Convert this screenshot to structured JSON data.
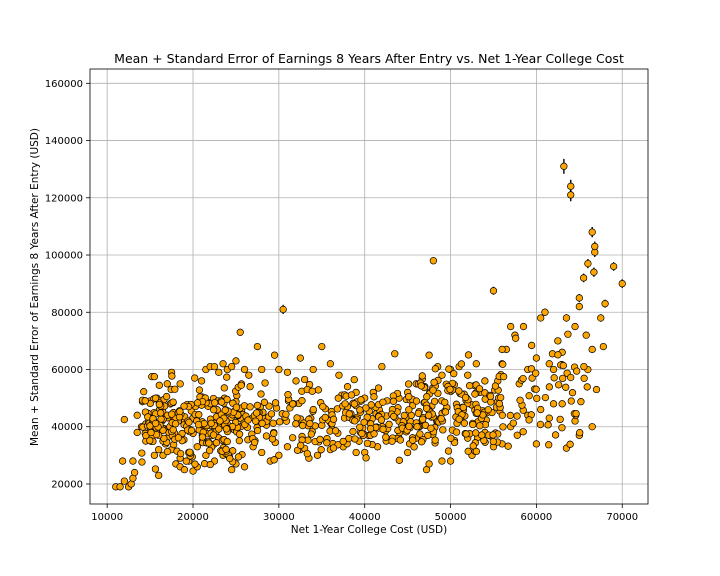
{
  "chart_data": {
    "type": "scatter",
    "title": "Mean + Standard Error of Earnings 8 Years After Entry vs. Net 1-Year College Cost",
    "xlabel": "Net 1-Year College Cost (USD)",
    "ylabel": "Mean + Standard Error of Earnings 8 Years After Entry (USD)",
    "xlim": [
      8000,
      73000
    ],
    "ylim": [
      13000,
      165000
    ],
    "xticks": [
      10000,
      20000,
      30000,
      40000,
      50000,
      60000,
      70000
    ],
    "yticks": [
      20000,
      40000,
      60000,
      80000,
      100000,
      120000,
      140000,
      160000
    ],
    "grid": true,
    "marker_color": "#ffa500",
    "marker_edge_color": "#000000",
    "points": [
      [
        11000,
        19000,
        300
      ],
      [
        11500,
        19000,
        300
      ],
      [
        12000,
        21000,
        400
      ],
      [
        12500,
        19000,
        300
      ],
      [
        12800,
        20000,
        400
      ],
      [
        13000,
        22000,
        400
      ],
      [
        11800,
        28000,
        500
      ],
      [
        12000,
        42500,
        600
      ],
      [
        13000,
        28000,
        500
      ],
      [
        13200,
        24000,
        400
      ],
      [
        13500,
        44000,
        600
      ],
      [
        14000,
        40000,
        600
      ],
      [
        14500,
        41000,
        700
      ],
      [
        15000,
        43000,
        700
      ],
      [
        15000,
        49000,
        700
      ],
      [
        15200,
        57500,
        800
      ],
      [
        15500,
        57500,
        800
      ],
      [
        15800,
        50000,
        700
      ],
      [
        16000,
        23000,
        500
      ],
      [
        16000,
        32000,
        600
      ],
      [
        16500,
        30000,
        600
      ],
      [
        16800,
        34000,
        600
      ],
      [
        17000,
        36000,
        600
      ],
      [
        17200,
        38000,
        600
      ],
      [
        17000,
        55000,
        800
      ],
      [
        17500,
        59000,
        800
      ],
      [
        18000,
        27000,
        500
      ],
      [
        18500,
        26000,
        500
      ],
      [
        19000,
        25000,
        500
      ],
      [
        19500,
        28000,
        500
      ],
      [
        20000,
        24500,
        500
      ],
      [
        20500,
        26000,
        500
      ],
      [
        20200,
        57000,
        800
      ],
      [
        21000,
        56000,
        800
      ],
      [
        21500,
        60000,
        800
      ],
      [
        22000,
        61000,
        900
      ],
      [
        22500,
        61000,
        900
      ],
      [
        23000,
        59000,
        900
      ],
      [
        23500,
        62000,
        900
      ],
      [
        24000,
        60000,
        900
      ],
      [
        24500,
        61000,
        900
      ],
      [
        25000,
        63000,
        900
      ],
      [
        25500,
        73000,
        1000
      ],
      [
        26000,
        60000,
        900
      ],
      [
        26500,
        58000,
        900
      ],
      [
        27500,
        68000,
        1000
      ],
      [
        28000,
        60000,
        900
      ],
      [
        29500,
        65000,
        1000
      ],
      [
        30000,
        60000,
        900
      ],
      [
        30500,
        81000,
        1600
      ],
      [
        31000,
        59000,
        900
      ],
      [
        32000,
        56000,
        900
      ],
      [
        32500,
        64000,
        1000
      ],
      [
        33000,
        56500,
        900
      ],
      [
        34000,
        60000,
        900
      ],
      [
        35000,
        68000,
        1000
      ],
      [
        36000,
        62000,
        1000
      ],
      [
        37000,
        58000,
        900
      ],
      [
        38000,
        54000,
        900
      ],
      [
        39000,
        52000,
        900
      ],
      [
        40000,
        50000,
        900
      ],
      [
        41000,
        52000,
        900
      ],
      [
        42000,
        61000,
        1000
      ],
      [
        43500,
        65500,
        1000
      ],
      [
        44000,
        50000,
        900
      ],
      [
        45000,
        52000,
        900
      ],
      [
        46000,
        55000,
        900
      ],
      [
        47000,
        54000,
        900
      ],
      [
        47500,
        65000,
        1000
      ],
      [
        48000,
        98000,
        1200
      ],
      [
        48500,
        61000,
        1000
      ],
      [
        49000,
        58000,
        900
      ],
      [
        50000,
        60000,
        900
      ],
      [
        51000,
        61000,
        1000
      ],
      [
        52000,
        58000,
        900
      ],
      [
        53000,
        62000,
        1000
      ],
      [
        54000,
        56000,
        900
      ],
      [
        55000,
        87500,
        1400
      ],
      [
        55500,
        56000,
        900
      ],
      [
        56000,
        62000,
        1000
      ],
      [
        56500,
        67000,
        1100
      ],
      [
        57000,
        75000,
        1200
      ],
      [
        57500,
        72000,
        1100
      ],
      [
        58000,
        55000,
        900
      ],
      [
        58500,
        75000,
        1200
      ],
      [
        59000,
        60000,
        1000
      ],
      [
        59500,
        57000,
        900
      ],
      [
        60000,
        64000,
        1000
      ],
      [
        60500,
        78000,
        1200
      ],
      [
        61000,
        80000,
        1300
      ],
      [
        61500,
        62000,
        1000
      ],
      [
        62000,
        60000,
        1000
      ],
      [
        62500,
        70000,
        1100
      ],
      [
        63000,
        66000,
        1000
      ],
      [
        63500,
        78000,
        1300
      ],
      [
        63200,
        131000,
        2600
      ],
      [
        64000,
        124000,
        2300
      ],
      [
        64000,
        121000,
        2200
      ],
      [
        64500,
        75000,
        1200
      ],
      [
        65000,
        82000,
        1300
      ],
      [
        65000,
        85000,
        1400
      ],
      [
        65500,
        92000,
        1500
      ],
      [
        66000,
        97000,
        1600
      ],
      [
        66500,
        108000,
        1800
      ],
      [
        66800,
        101000,
        1700
      ],
      [
        66800,
        103000,
        1700
      ],
      [
        66700,
        94000,
        1600
      ],
      [
        67500,
        78000,
        1300
      ],
      [
        68000,
        83000,
        1400
      ],
      [
        67800,
        68000,
        1100
      ],
      [
        66500,
        67000,
        1100
      ],
      [
        65800,
        72000,
        1100
      ],
      [
        69000,
        96000,
        1500
      ],
      [
        70000,
        90000,
        1500
      ],
      [
        63500,
        32500,
        700
      ],
      [
        63000,
        48000,
        800
      ],
      [
        64500,
        42000,
        800
      ],
      [
        65000,
        37000,
        700
      ],
      [
        66500,
        40000,
        800
      ],
      [
        67000,
        53000,
        900
      ],
      [
        60000,
        34000,
        700
      ],
      [
        60500,
        46000,
        800
      ],
      [
        61500,
        43000,
        800
      ],
      [
        62000,
        48000,
        800
      ],
      [
        59000,
        44000,
        800
      ],
      [
        57000,
        40000,
        700
      ],
      [
        56000,
        34000,
        700
      ],
      [
        55000,
        33000,
        700
      ],
      [
        54000,
        38000,
        700
      ],
      [
        52500,
        30000,
        600
      ],
      [
        52000,
        36000,
        700
      ],
      [
        50000,
        28000,
        600
      ],
      [
        49000,
        28000,
        600
      ],
      [
        47200,
        25000,
        600
      ],
      [
        47500,
        27000,
        600
      ],
      [
        46000,
        36000,
        700
      ],
      [
        45000,
        31000,
        600
      ],
      [
        44000,
        36000,
        700
      ],
      [
        42500,
        35000,
        700
      ],
      [
        41500,
        33000,
        700
      ],
      [
        40000,
        31000,
        600
      ],
      [
        39000,
        31000,
        600
      ],
      [
        37500,
        33000,
        700
      ],
      [
        36000,
        32000,
        700
      ],
      [
        34500,
        30000,
        600
      ],
      [
        33500,
        29000,
        600
      ],
      [
        32500,
        32000,
        700
      ],
      [
        31000,
        33000,
        700
      ],
      [
        30000,
        30000,
        600
      ],
      [
        29000,
        28000,
        600
      ],
      [
        28000,
        31000,
        600
      ],
      [
        27000,
        33000,
        600
      ],
      [
        26000,
        26000,
        500
      ],
      [
        25000,
        27000,
        500
      ],
      [
        24500,
        25000,
        500
      ],
      [
        23500,
        30000,
        600
      ],
      [
        22500,
        28000,
        500
      ],
      [
        21500,
        30000,
        600
      ],
      [
        20500,
        33000,
        600
      ],
      [
        19500,
        31000,
        600
      ],
      [
        18500,
        29000,
        600
      ],
      [
        17500,
        32000,
        600
      ],
      [
        16500,
        35000,
        600
      ],
      [
        15500,
        30000,
        600
      ],
      [
        14500,
        35000,
        600
      ],
      [
        13500,
        38000,
        600
      ]
    ]
  }
}
